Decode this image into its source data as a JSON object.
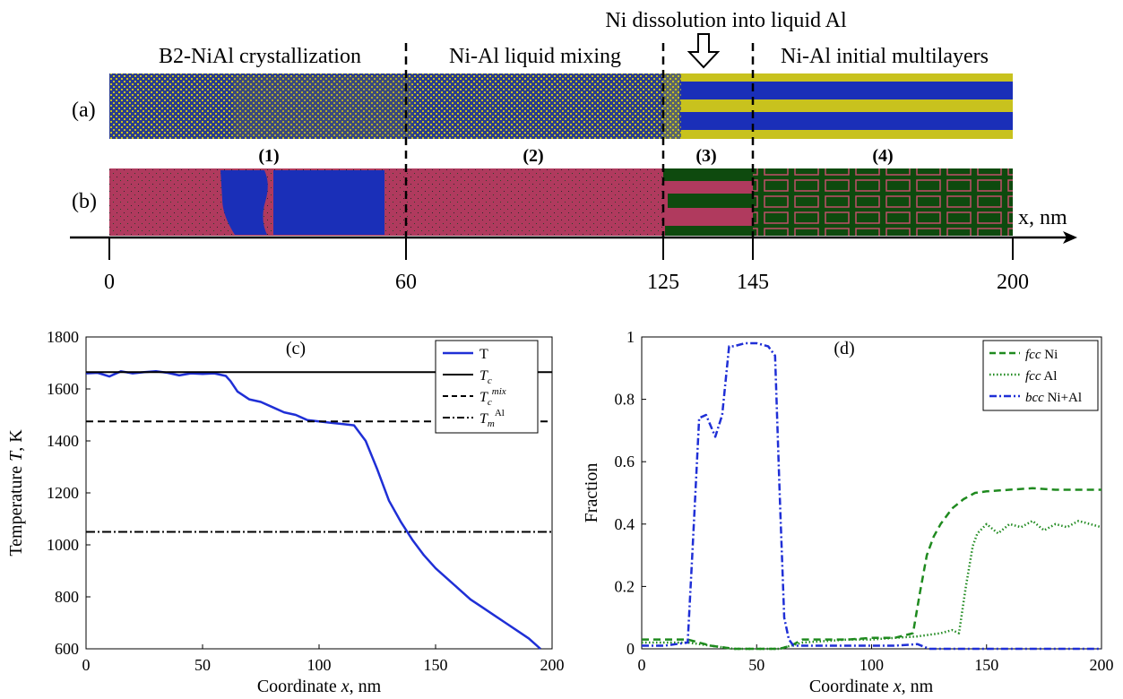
{
  "header": {
    "section_labels": [
      "B2-NiAl crystallization",
      "Ni-Al liquid mixing",
      "Ni-Al initial multilayers"
    ],
    "dissolution_label": "Ni dissolution into liquid Al",
    "row_a": "(a)",
    "row_b": "(b)",
    "region_numbers": [
      "(1)",
      "(2)",
      "(3)",
      "(4)"
    ],
    "axis_label": "x, nm",
    "axis_ticks": [
      "0",
      "60",
      "125",
      "145",
      "200"
    ]
  },
  "colors": {
    "ni_blue": "#1a2fb8",
    "al_yellow": "#c8c21e",
    "fcc_green": "#0e4a0e",
    "bcc_red": "#b03a5e",
    "line_blue": "#1f2fd6",
    "line_green": "#1f8a1f"
  },
  "chart_data": [
    {
      "type": "line",
      "panel": "(c)",
      "xlabel": "Coordinate x, nm",
      "ylabel": "Temperature T, K",
      "xlim": [
        0,
        200
      ],
      "ylim": [
        600,
        1800
      ],
      "xticks": [
        "0",
        "50",
        "100",
        "150",
        "200"
      ],
      "yticks": [
        "600",
        "800",
        "1000",
        "1200",
        "1400",
        "1600",
        "1800"
      ],
      "legend_position": "top-right",
      "legend": [
        "T",
        "Tc",
        "Tc mix",
        "Tm Al"
      ],
      "series": [
        {
          "name": "T",
          "style": "solid-blue",
          "x": [
            0,
            5,
            10,
            15,
            20,
            25,
            30,
            35,
            40,
            45,
            50,
            55,
            60,
            62,
            65,
            70,
            75,
            80,
            85,
            90,
            95,
            100,
            105,
            110,
            115,
            120,
            125,
            130,
            135,
            140,
            145,
            150,
            155,
            160,
            165,
            170,
            175,
            180,
            185,
            190,
            195
          ],
          "y": [
            1660,
            1662,
            1648,
            1668,
            1660,
            1665,
            1668,
            1662,
            1652,
            1660,
            1658,
            1660,
            1650,
            1630,
            1590,
            1560,
            1550,
            1530,
            1510,
            1500,
            1480,
            1475,
            1470,
            1465,
            1460,
            1400,
            1290,
            1170,
            1090,
            1020,
            960,
            910,
            870,
            830,
            790,
            760,
            730,
            700,
            670,
            640,
            600
          ]
        },
        {
          "name": "Tc",
          "style": "solid-black",
          "x": [
            0,
            200
          ],
          "y": [
            1665,
            1665
          ]
        },
        {
          "name": "Tc mix",
          "style": "dashed-black",
          "x": [
            0,
            200
          ],
          "y": [
            1475,
            1475
          ]
        },
        {
          "name": "Tm Al",
          "style": "dashdot-black",
          "x": [
            0,
            200
          ],
          "y": [
            1050,
            1050
          ]
        }
      ]
    },
    {
      "type": "line",
      "panel": "(d)",
      "xlabel": "Coordinate x, nm",
      "ylabel": "Fraction",
      "xlim": [
        0,
        200
      ],
      "ylim": [
        0,
        1
      ],
      "xticks": [
        "0",
        "50",
        "100",
        "150",
        "200"
      ],
      "yticks": [
        "0",
        "0.2",
        "0.4",
        "0.6",
        "0.8",
        "1"
      ],
      "legend_position": "top-right",
      "legend": [
        "fcc Ni",
        "fcc Al",
        "bcc Ni+Al"
      ],
      "series": [
        {
          "name": "fcc Ni",
          "style": "dashed-green",
          "x": [
            0,
            10,
            20,
            30,
            40,
            50,
            60,
            65,
            70,
            80,
            90,
            100,
            110,
            118,
            121,
            124,
            127,
            130,
            135,
            140,
            145,
            150,
            160,
            170,
            180,
            190,
            200
          ],
          "y": [
            0.03,
            0.03,
            0.03,
            0.01,
            0.0,
            0.0,
            0.0,
            0.01,
            0.03,
            0.03,
            0.03,
            0.035,
            0.035,
            0.05,
            0.18,
            0.3,
            0.36,
            0.4,
            0.45,
            0.48,
            0.5,
            0.505,
            0.51,
            0.515,
            0.51,
            0.51,
            0.51
          ]
        },
        {
          "name": "fcc Al",
          "style": "dotted-green",
          "x": [
            0,
            10,
            20,
            30,
            40,
            50,
            60,
            65,
            70,
            80,
            90,
            100,
            110,
            120,
            130,
            135,
            138,
            141,
            144,
            146,
            150,
            155,
            160,
            165,
            170,
            175,
            180,
            185,
            190,
            195,
            200
          ],
          "y": [
            0.02,
            0.02,
            0.02,
            0.01,
            0.0,
            0.0,
            0.0,
            0.01,
            0.02,
            0.025,
            0.03,
            0.03,
            0.035,
            0.04,
            0.05,
            0.06,
            0.05,
            0.2,
            0.33,
            0.37,
            0.4,
            0.37,
            0.4,
            0.39,
            0.41,
            0.38,
            0.4,
            0.39,
            0.41,
            0.4,
            0.39
          ]
        },
        {
          "name": "bcc Ni+Al",
          "style": "dashdot-blue",
          "x": [
            0,
            10,
            20,
            22,
            25,
            28,
            32,
            35,
            38,
            40,
            45,
            50,
            55,
            58,
            60,
            62,
            64,
            66,
            70,
            80,
            90,
            100,
            110,
            120,
            125,
            130,
            140,
            150,
            160,
            170,
            180,
            190,
            200
          ],
          "y": [
            0.01,
            0.01,
            0.02,
            0.3,
            0.74,
            0.75,
            0.68,
            0.75,
            0.97,
            0.97,
            0.98,
            0.98,
            0.97,
            0.94,
            0.5,
            0.1,
            0.03,
            0.01,
            0.01,
            0.01,
            0.01,
            0.01,
            0.01,
            0.015,
            0.0,
            0.0,
            0.0,
            0.0,
            0.0,
            0.0,
            0.0,
            0.0,
            0.0
          ]
        }
      ]
    }
  ]
}
